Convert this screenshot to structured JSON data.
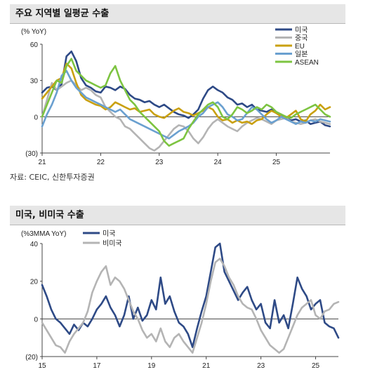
{
  "charts": [
    {
      "panel_title": "주요 지역별 일평균 수출",
      "source": "자료: CEIC, 신한투자증권"
    },
    {
      "panel_title": "미국, 비미국 수출"
    }
  ],
  "chart_data": [
    {
      "type": "line",
      "title": "",
      "ylabel": "(% YoY)",
      "xlabel": "",
      "ylim": [
        -30,
        60
      ],
      "yticks": [
        60,
        30,
        0,
        -30
      ],
      "ytick_labels": [
        "60",
        "30",
        "0",
        "(30)"
      ],
      "x_range": [
        0,
        59
      ],
      "xticks": [
        {
          "x": 0,
          "label": "21"
        },
        {
          "x": 12,
          "label": "22"
        },
        {
          "x": 24,
          "label": "23"
        },
        {
          "x": 36,
          "label": "24"
        },
        {
          "x": 48,
          "label": "25"
        }
      ],
      "legend_position": "top-right",
      "series": [
        {
          "name": "미국",
          "color": "#2e4a86",
          "values": [
            20,
            24,
            25,
            22,
            27,
            50,
            54,
            46,
            32,
            26,
            24,
            21,
            20,
            25,
            24,
            22,
            25,
            23,
            18,
            15,
            14,
            12,
            13,
            10,
            8,
            10,
            7,
            4,
            2,
            1,
            -1,
            2,
            6,
            15,
            22,
            25,
            22,
            20,
            16,
            14,
            10,
            11,
            8,
            10,
            6,
            5,
            4,
            6,
            3,
            2,
            -1,
            -3,
            -2,
            -4,
            -3,
            -6,
            -5,
            -4,
            -7,
            -8
          ]
        },
        {
          "name": "중국",
          "color": "#b4b4b4",
          "values": [
            0,
            14,
            28,
            22,
            25,
            28,
            30,
            26,
            22,
            24,
            22,
            18,
            16,
            8,
            4,
            0,
            -2,
            -8,
            -10,
            -14,
            -18,
            -22,
            -26,
            -28,
            -25,
            -20,
            -15,
            -10,
            -7,
            -8,
            -12,
            -18,
            -22,
            -17,
            -10,
            -5,
            -2,
            -5,
            -8,
            -10,
            -12,
            -8,
            -5,
            -3,
            -1,
            -2,
            -4,
            -6,
            -3,
            -2,
            -1,
            -4,
            -5,
            -6,
            -5,
            -3,
            -2,
            -4,
            -5,
            -6
          ]
        },
        {
          "name": "EU",
          "color": "#c9a00f",
          "values": [
            15,
            20,
            25,
            30,
            32,
            44,
            40,
            28,
            18,
            14,
            12,
            10,
            9,
            6,
            8,
            12,
            10,
            8,
            6,
            7,
            4,
            5,
            6,
            2,
            0,
            -1,
            2,
            5,
            7,
            4,
            3,
            1,
            3,
            5,
            8,
            6,
            0,
            -3,
            -2,
            -5,
            -3,
            -5,
            -4,
            -6,
            -3,
            -2,
            2,
            5,
            3,
            0,
            -1,
            2,
            5,
            -2,
            -4,
            2,
            5,
            10,
            6,
            8
          ]
        },
        {
          "name": "일본",
          "color": "#6aa0d0",
          "values": [
            -8,
            2,
            10,
            20,
            34,
            38,
            30,
            24,
            20,
            16,
            14,
            12,
            10,
            8,
            6,
            4,
            6,
            2,
            -2,
            -4,
            -6,
            -8,
            -10,
            -12,
            -14,
            -16,
            -18,
            -15,
            -12,
            -10,
            -8,
            -5,
            0,
            3,
            8,
            10,
            12,
            8,
            2,
            0,
            -3,
            -2,
            3,
            8,
            6,
            2,
            -2,
            -5,
            -3,
            0,
            -2,
            -4,
            -6,
            -4,
            -5,
            -3,
            -4,
            -2,
            -3,
            -4
          ]
        },
        {
          "name": "ASEAN",
          "color": "#7dc441",
          "values": [
            0,
            10,
            20,
            30,
            28,
            42,
            48,
            38,
            34,
            30,
            28,
            26,
            24,
            26,
            36,
            42,
            30,
            22,
            14,
            10,
            4,
            0,
            -4,
            -8,
            -12,
            -20,
            -24,
            -22,
            -20,
            -18,
            -10,
            -4,
            2,
            6,
            10,
            12,
            8,
            0,
            -2,
            2,
            8,
            6,
            3,
            5,
            8,
            6,
            10,
            8,
            4,
            2,
            0,
            -1,
            2,
            4,
            6,
            8,
            10,
            6,
            2,
            0
          ]
        }
      ]
    },
    {
      "type": "line",
      "title": "",
      "ylabel": "(%3MMA YoY)",
      "xlabel": "",
      "ylim": [
        -20,
        40
      ],
      "yticks": [
        40,
        20,
        0,
        -20
      ],
      "ytick_labels": [
        "40",
        "20",
        "0",
        "(20)"
      ],
      "x_range": [
        0,
        130
      ],
      "xticks": [
        {
          "x": 0,
          "label": "15"
        },
        {
          "x": 24,
          "label": "17"
        },
        {
          "x": 48,
          "label": "19"
        },
        {
          "x": 72,
          "label": "21"
        },
        {
          "x": 96,
          "label": "23"
        },
        {
          "x": 120,
          "label": "25"
        }
      ],
      "legend_position": "top-left",
      "series": [
        {
          "name": "미국",
          "color": "#2e4a86",
          "x": [
            0,
            2,
            4,
            6,
            8,
            10,
            12,
            14,
            16,
            18,
            20,
            22,
            24,
            26,
            28,
            30,
            32,
            34,
            36,
            38,
            40,
            42,
            44,
            46,
            48,
            50,
            52,
            54,
            56,
            58,
            60,
            62,
            64,
            66,
            68,
            70,
            72,
            74,
            76,
            78,
            80,
            82,
            84,
            86,
            88,
            90,
            92,
            94,
            96,
            98,
            100,
            102,
            104,
            106,
            108,
            110,
            112,
            114,
            116,
            118,
            120,
            122,
            124,
            126,
            128,
            130
          ],
          "values": [
            18,
            12,
            5,
            0,
            -2,
            -5,
            -8,
            -3,
            -6,
            -2,
            -4,
            0,
            5,
            8,
            12,
            6,
            2,
            -4,
            2,
            12,
            0,
            6,
            -1,
            2,
            10,
            5,
            22,
            8,
            12,
            4,
            -2,
            -4,
            -8,
            -15,
            -5,
            4,
            12,
            25,
            38,
            40,
            25,
            20,
            15,
            10,
            14,
            17,
            10,
            5,
            8,
            -2,
            -5,
            10,
            -2,
            2,
            -5,
            8,
            22,
            16,
            12,
            5,
            8,
            10,
            -2,
            -4,
            -5,
            -10
          ]
        },
        {
          "name": "비미국",
          "color": "#b4b4b4",
          "x": [
            0,
            2,
            4,
            6,
            8,
            10,
            12,
            14,
            16,
            18,
            20,
            22,
            24,
            26,
            28,
            30,
            32,
            34,
            36,
            38,
            40,
            42,
            44,
            46,
            48,
            50,
            52,
            54,
            56,
            58,
            60,
            62,
            64,
            66,
            68,
            70,
            72,
            74,
            76,
            78,
            80,
            82,
            84,
            86,
            88,
            90,
            92,
            94,
            96,
            98,
            100,
            102,
            104,
            106,
            108,
            110,
            112,
            114,
            116,
            118,
            120,
            122,
            124,
            126,
            128,
            130
          ],
          "values": [
            -2,
            -6,
            -10,
            -14,
            -15,
            -18,
            -12,
            -8,
            -5,
            -2,
            4,
            14,
            20,
            25,
            28,
            18,
            22,
            20,
            16,
            10,
            4,
            0,
            -6,
            -10,
            -8,
            -12,
            -5,
            -12,
            -15,
            -10,
            -8,
            -12,
            -15,
            -18,
            -10,
            -2,
            8,
            20,
            30,
            32,
            28,
            22,
            18,
            12,
            8,
            6,
            5,
            0,
            -6,
            -10,
            -14,
            -16,
            -18,
            -16,
            -10,
            -4,
            2,
            6,
            8,
            10,
            2,
            0,
            4,
            5,
            8,
            9
          ]
        }
      ]
    }
  ]
}
